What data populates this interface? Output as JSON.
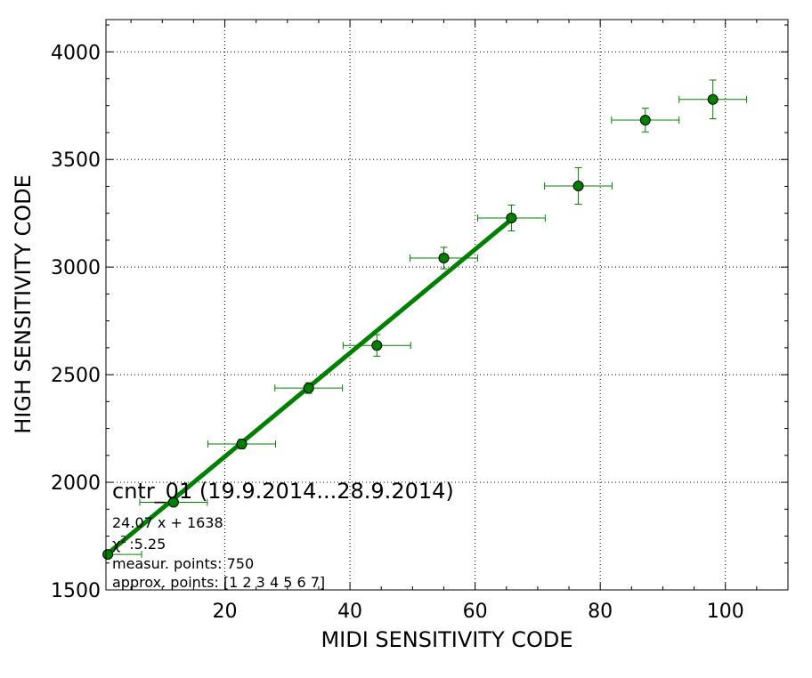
{
  "chart_data": {
    "type": "scatter",
    "xlabel": "MIDI SENSITIVITY CODE",
    "ylabel": "HIGH SENSITIVITY CODE",
    "xlim": [
      1,
      110
    ],
    "ylim": [
      1500,
      4150
    ],
    "grid": true,
    "xticks": [
      20,
      40,
      60,
      80,
      100
    ],
    "yticks": [
      1500,
      2000,
      2500,
      3000,
      3500,
      4000
    ],
    "series": [
      {
        "x": [
          1.3,
          11.8,
          22.7,
          33.4,
          44.3,
          55.0,
          65.8,
          76.5,
          87.2,
          98.0
        ],
        "y": [
          1665,
          1907,
          2178,
          2438,
          2636,
          3042,
          3228,
          3377,
          3683,
          3779
        ],
        "xerr": [
          5.4,
          5.4,
          5.4,
          5.4,
          5.4,
          5.4,
          5.4,
          5.4,
          5.4,
          5.4
        ],
        "yerr": [
          0,
          0,
          22,
          25,
          50,
          50,
          60,
          85,
          55,
          90
        ],
        "color": "#008000",
        "marker_fill": "#008000",
        "marker_edge": "#000000"
      }
    ],
    "fit": {
      "slope": 24.07,
      "intercept": 1638,
      "x_range": [
        1,
        65.8
      ],
      "color": "#008000"
    },
    "annotations": {
      "title": "cntr_01 (19.9.2014...28.9.2014)",
      "equation": "24.07 x + 1638",
      "chi2_label": "χ",
      "chi2_sup": "2",
      "chi2_value": ":5.25",
      "measur_points": "measur. points: 750",
      "approx_points": "approx. points: [1 2 3 4 5 6 7]"
    }
  }
}
